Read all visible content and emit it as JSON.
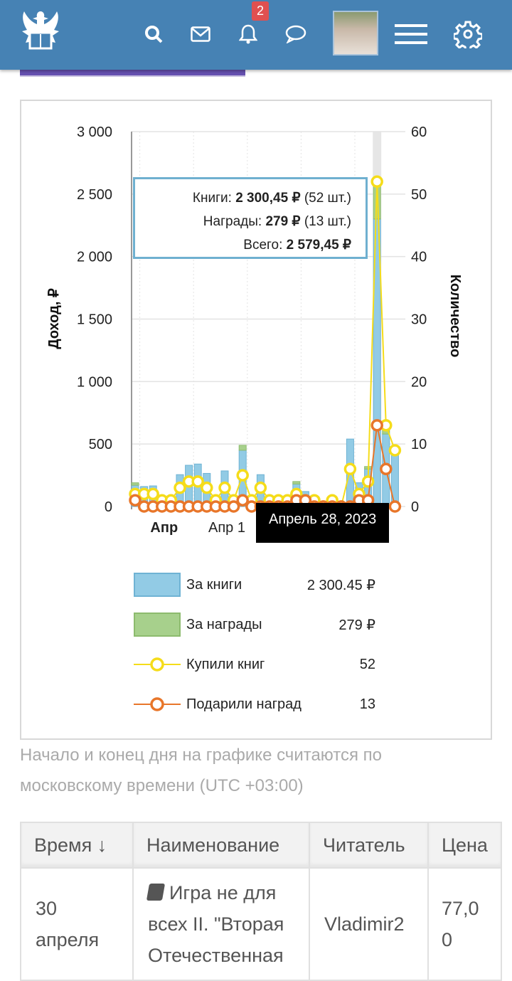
{
  "header": {
    "notifications_count": "2",
    "icons": [
      "logo-eagle",
      "search-icon",
      "mail-icon",
      "bell-icon",
      "chat-icon",
      "avatar",
      "menu-icon",
      "gear-icon"
    ]
  },
  "tooltip": {
    "books_label": "Книги:",
    "books_value": "2 300,45 ₽",
    "books_count": "(52 шт.)",
    "awards_label": "Награды:",
    "awards_value": "279 ₽",
    "awards_count": "(13 шт.)",
    "total_label": "Всего:",
    "total_value": "2 579,45 ₽"
  },
  "date_tooltip": "Апрель 28, 2023",
  "chart_data": {
    "type": "bar+line",
    "ylabel": "Доход, ₽",
    "y2label": "Количество",
    "ylim": [
      0,
      3000
    ],
    "y2lim": [
      0,
      60
    ],
    "yticks": [
      "0",
      "500",
      "1 000",
      "1 500",
      "2 000",
      "2 500",
      "3 000"
    ],
    "y2ticks": [
      "0",
      "10",
      "20",
      "30",
      "40",
      "50",
      "60"
    ],
    "xticks": [
      {
        "index": 3,
        "label": "Апр",
        "bold": true
      },
      {
        "index": 10,
        "label": "Апр 1",
        "bold": false
      }
    ],
    "highlight_index": 27,
    "books": [
      170,
      160,
      165,
      40,
      40,
      255,
      330,
      340,
      265,
      40,
      285,
      40,
      450,
      40,
      255,
      40,
      40,
      30,
      180,
      120,
      40,
      20,
      40,
      20,
      540,
      190,
      300,
      2300.45,
      580,
      470
    ],
    "awards": [
      20,
      0,
      0,
      0,
      0,
      0,
      0,
      0,
      0,
      0,
      0,
      0,
      40,
      0,
      0,
      0,
      0,
      0,
      20,
      0,
      0,
      0,
      0,
      0,
      0,
      0,
      20,
      279,
      60,
      0
    ],
    "books_count": [
      2,
      2,
      2,
      1,
      1,
      3,
      4,
      4,
      3,
      1,
      3,
      1,
      5,
      1,
      3,
      1,
      1,
      1,
      2,
      1,
      1,
      0,
      1,
      0,
      6,
      2,
      4,
      52,
      13,
      9
    ],
    "awards_count": [
      1,
      0,
      0,
      0,
      0,
      0,
      0,
      0,
      0,
      0,
      0,
      0,
      1,
      0,
      0,
      0,
      0,
      0,
      1,
      1,
      0,
      0,
      0,
      0,
      0,
      1,
      1,
      13,
      6,
      0
    ],
    "colors": {
      "books": "#92cbe5",
      "awards": "#a7d08c",
      "books_count": "#f5dc1a",
      "awards_count": "#e8762a"
    }
  },
  "legend": [
    {
      "label": "За книги",
      "value": "2 300.45 ₽",
      "kind": "bar",
      "color": "#92cbe5"
    },
    {
      "label": "За награды",
      "value": "279 ₽",
      "kind": "bar",
      "color": "#a7d08c"
    },
    {
      "label": "Купили книг",
      "value": "52",
      "kind": "line",
      "color": "#f5dc1a"
    },
    {
      "label": "Подарили наград",
      "value": "13",
      "kind": "line",
      "color": "#e8762a"
    }
  ],
  "note": "Начало и конец дня на графике считаются по московскому времени (UTC +03:00)",
  "table": {
    "headers": [
      "Время ↓",
      "Наименование",
      "Читатель",
      "Цена"
    ],
    "rows": [
      {
        "time": "30 апреля",
        "title": "Игра не для всех II. \"Вторая Отечественная",
        "reader": "Vladimir2",
        "price": "77,00"
      }
    ]
  }
}
